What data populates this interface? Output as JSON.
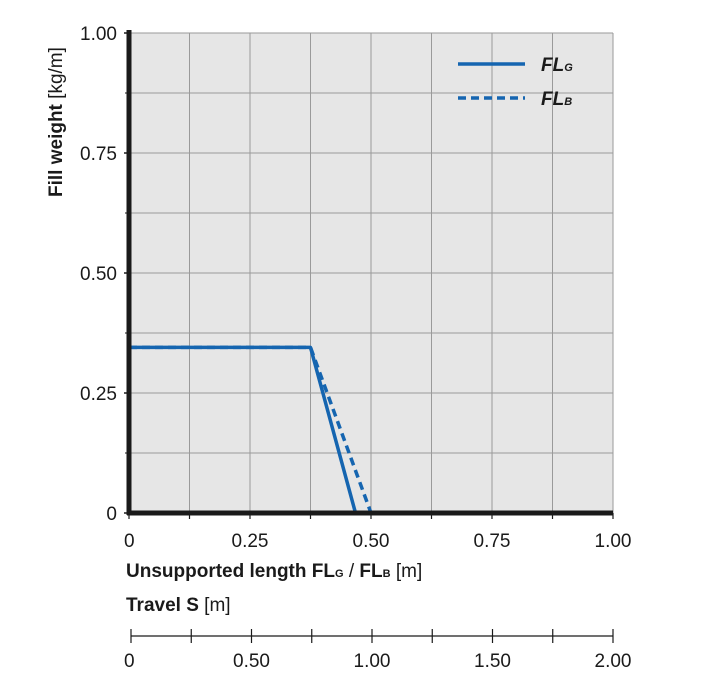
{
  "chart_data": {
    "type": "line",
    "title": "",
    "xlabel": {
      "bold_text": "Unsupported length FL",
      "sub1": "G",
      "mid": " / ",
      "bold_text2": "FL",
      "sub2": "B",
      "unit": " [m]"
    },
    "x2label": {
      "bold_text": "Travel S",
      "unit": " [m]"
    },
    "ylabel": {
      "bold_text": "Fill weight",
      "unit": " [kg/m]"
    },
    "xlim": [
      0,
      1.0
    ],
    "ylim": [
      0,
      1.0
    ],
    "x_ticks": [
      "0",
      "0.25",
      "0.50",
      "0.75",
      "1.00"
    ],
    "x_tick_values": [
      0,
      0.25,
      0.5,
      0.75,
      1.0
    ],
    "y_ticks": [
      "0",
      "0.25",
      "0.50",
      "0.75",
      "1.00"
    ],
    "y_tick_values": [
      0,
      0.25,
      0.5,
      0.75,
      1.0
    ],
    "x2_ticks": [
      "0",
      "0.50",
      "1.00",
      "1.50",
      "2.00"
    ],
    "x2_tick_values": [
      0,
      0.5,
      1.0,
      1.5,
      2.0
    ],
    "x2lim": [
      0,
      2.0
    ],
    "grid": true,
    "plot_background": "#e6e6e6",
    "legend_position": "top-right",
    "series": [
      {
        "name": "FL",
        "name_sub": "G",
        "style": "solid",
        "color": "#1565b0",
        "x": [
          0,
          0.375,
          0.468
        ],
        "y": [
          0.345,
          0.345,
          0
        ]
      },
      {
        "name": "FL",
        "name_sub": "B",
        "style": "dashed",
        "color": "#1565b0",
        "x": [
          0,
          0.375,
          0.5
        ],
        "y": [
          0.345,
          0.345,
          0
        ]
      }
    ]
  }
}
